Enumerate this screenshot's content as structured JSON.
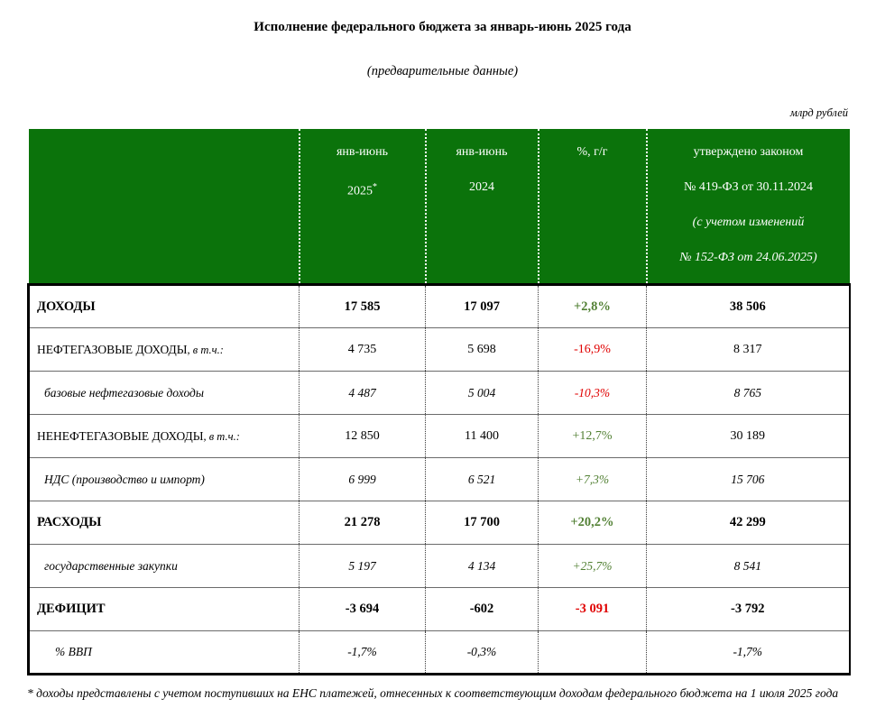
{
  "title": "Исполнение федерального бюджета за январь-июнь 2025 года",
  "subtitle": "(предварительные данные)",
  "units": "млрд рублей",
  "colors": {
    "header_green": "#0b730b",
    "positive_green": "#538135",
    "negative_red": "#e00000"
  },
  "table": {
    "headers": {
      "col_2025_line1": "янв-июнь",
      "col_2025_line2": "2025",
      "col_2025_sup": "*",
      "col_2024_line1": "янв-июнь",
      "col_2024_line2": "2024",
      "col_yoy": "%, г/г",
      "col_law_line1": "утверждено законом",
      "col_law_line2": "№ 419-ФЗ от 30.11.2024",
      "col_law_line3": "(с учетом изменений",
      "col_law_line4": "№ 152-ФЗ от 24.06.2025)"
    },
    "rows": [
      {
        "label": "ДОХОДЫ",
        "suffix": "",
        "v2025": "17 585",
        "v2024": "17 097",
        "yoy": "+2,8%",
        "law": "38 506"
      },
      {
        "label": "НЕФТЕГАЗОВЫЕ ДОХОДЫ",
        "suffix": ", в т.ч.:",
        "v2025": "4 735",
        "v2024": "5 698",
        "yoy": "-16,9%",
        "law": "8 317"
      },
      {
        "label": "базовые нефтегазовые доходы",
        "suffix": "",
        "v2025": "4 487",
        "v2024": "5 004",
        "yoy": "-10,3%",
        "law": "8 765"
      },
      {
        "label": "НЕНЕФТЕГАЗОВЫЕ ДОХОДЫ",
        "suffix": ", в т.ч.:",
        "v2025": "12 850",
        "v2024": "11 400",
        "yoy": "+12,7%",
        "law": "30 189"
      },
      {
        "label": "НДС (производство и импорт)",
        "suffix": "",
        "v2025": "6 999",
        "v2024": "6 521",
        "yoy": "+7,3%",
        "law": "15 706"
      },
      {
        "label": "РАСХОДЫ",
        "suffix": "",
        "v2025": "21 278",
        "v2024": "17 700",
        "yoy": "+20,2%",
        "law": "42 299"
      },
      {
        "label": "государственные закупки",
        "suffix": "",
        "v2025": "5 197",
        "v2024": "4 134",
        "yoy": "+25,7%",
        "law": "8 541"
      },
      {
        "label": "ДЕФИЦИТ",
        "suffix": "",
        "v2025": "-3 694",
        "v2024": "-602",
        "yoy": "-3 091",
        "law": "-3 792"
      },
      {
        "label": "% ВВП",
        "suffix": "",
        "v2025": "-1,7%",
        "v2024": "-0,3%",
        "yoy": "",
        "law": "-1,7%"
      }
    ]
  },
  "footnote": "* доходы представлены с учетом поступивших на ЕНС платежей, отнесенных к соответствующим доходам федерального бюджета на 1 июля 2025 года"
}
